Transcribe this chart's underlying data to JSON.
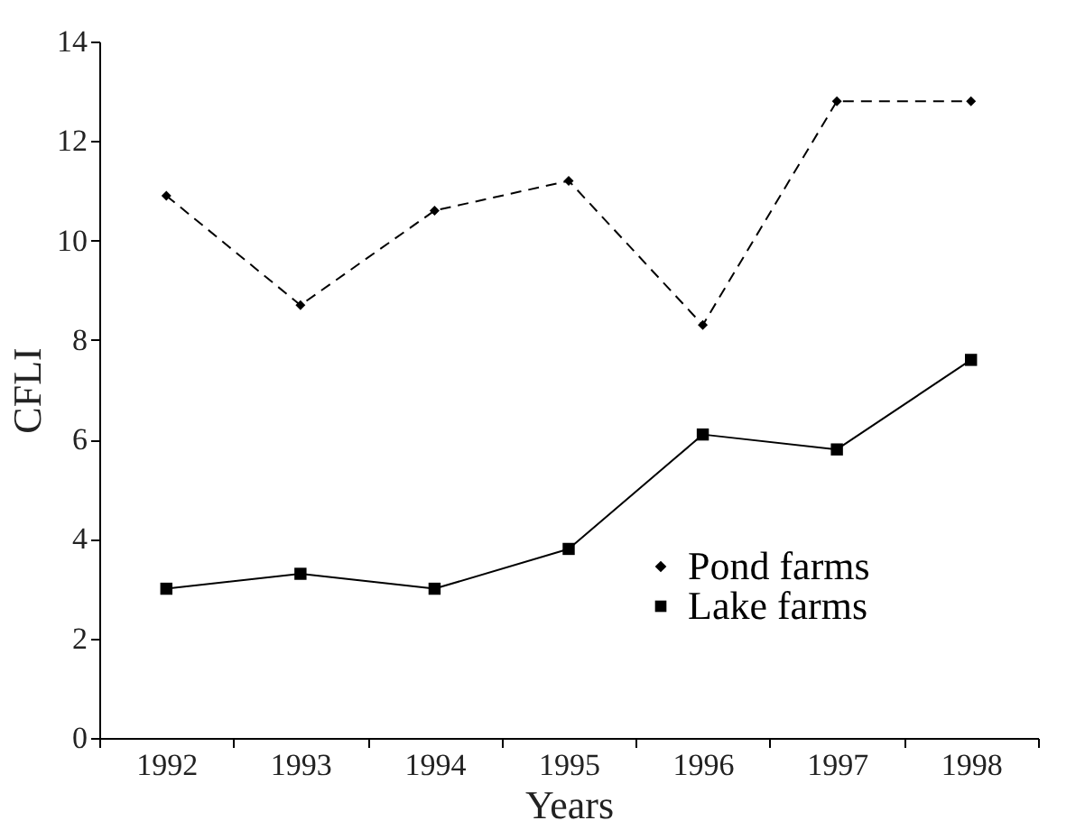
{
  "chart_data": {
    "type": "line",
    "xlabel": "Years",
    "ylabel": "CFLI",
    "categories": [
      "1992",
      "1993",
      "1994",
      "1995",
      "1996",
      "1997",
      "1998"
    ],
    "series": [
      {
        "name": "Pond farms",
        "color": "#000000",
        "marker": "diamond",
        "line_style": "dashed",
        "values": [
          10.9,
          8.7,
          10.6,
          11.2,
          8.3,
          12.8,
          12.8
        ]
      },
      {
        "name": "Lake farms",
        "color": "#000000",
        "marker": "square",
        "line_style": "solid",
        "values": [
          3.0,
          3.3,
          3.0,
          3.8,
          6.1,
          5.8,
          7.6
        ]
      }
    ],
    "ylim": [
      0,
      14
    ],
    "yticks": [
      0,
      2,
      4,
      6,
      8,
      10,
      12,
      14
    ],
    "grid": false,
    "legend": "bottom right"
  }
}
